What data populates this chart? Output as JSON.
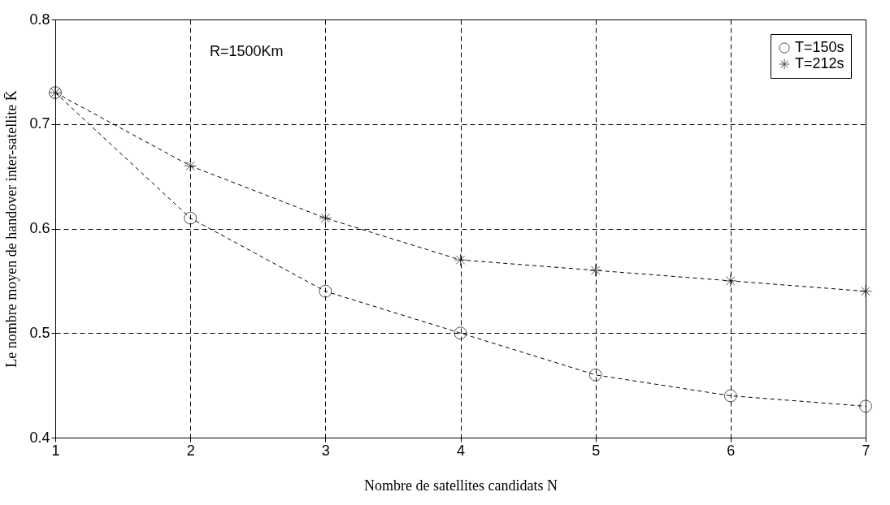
{
  "chart_data": {
    "type": "line",
    "xlabel": "Nombre de satellites candidats N",
    "ylabel": "Le nombre moyen de handover inter-satellite K̄",
    "x": [
      1,
      2,
      3,
      4,
      5,
      6,
      7
    ],
    "series": [
      {
        "name": "T=150s",
        "color": "#000000",
        "marker": "circle",
        "values": [
          0.73,
          0.61,
          0.54,
          0.5,
          0.46,
          0.44,
          0.43
        ]
      },
      {
        "name": "T=212s",
        "color": "#000000",
        "marker": "cross",
        "values": [
          0.73,
          0.66,
          0.61,
          0.57,
          0.56,
          0.55,
          0.54
        ]
      }
    ],
    "xlim": [
      1,
      7
    ],
    "xticks": [
      1,
      2,
      3,
      4,
      5,
      6,
      7
    ],
    "ylim": [
      0.4,
      0.8
    ],
    "yticks": [
      0.4,
      0.5,
      0.6,
      0.7,
      0.8
    ],
    "grid": true,
    "legend": "top right",
    "line_style": "dashed",
    "annotations": [
      "R=1500Km"
    ]
  }
}
